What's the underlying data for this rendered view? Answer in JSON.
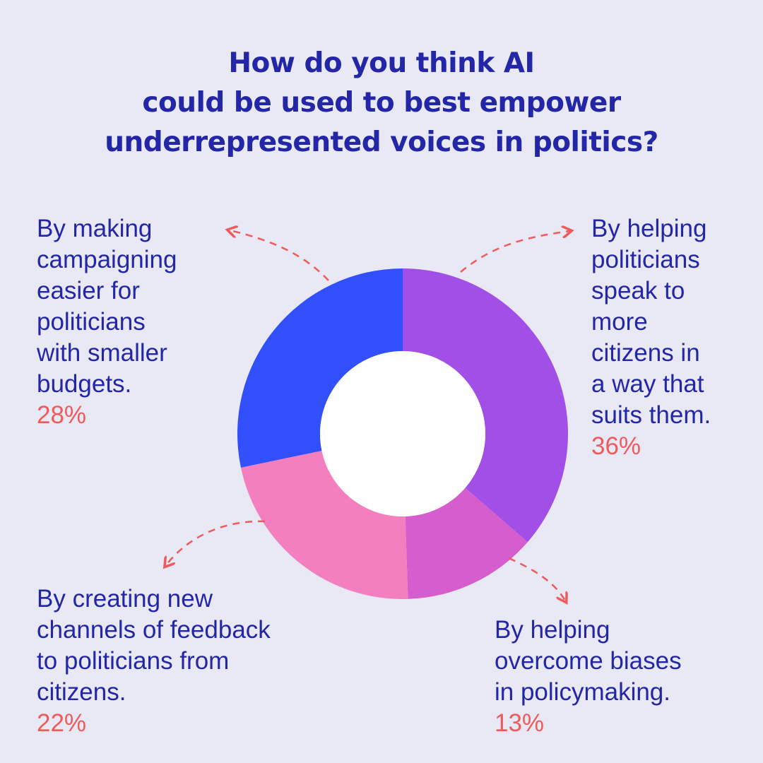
{
  "colors": {
    "background": "#e8e9f5",
    "title": "#2326a6",
    "label": "#2326a6",
    "percent": "#ef5a5a",
    "arrow": "#ef5a5a"
  },
  "chart_data": {
    "type": "pie",
    "variant": "donut",
    "title_lines": [
      "How do you think AI",
      "could be used to best empower",
      "underrepresented voices in politics?"
    ],
    "slices": [
      {
        "label_lines": [
          "By helping",
          "politicians",
          "speak to",
          "more",
          "citizens in",
          "a way that",
          "suits them."
        ],
        "percent_label": "36%",
        "value": 36,
        "color": "#a14fe6"
      },
      {
        "label_lines": [
          "By helping",
          "overcome biases",
          "in policymaking."
        ],
        "percent_label": "13%",
        "value": 13,
        "color": "#d65dce"
      },
      {
        "label_lines": [
          "By creating new",
          "channels of feedback",
          "to politicians from",
          "citizens."
        ],
        "percent_label": "22%",
        "value": 22,
        "color": "#f47fbe"
      },
      {
        "label_lines": [
          "By making",
          "campaigning",
          "easier for",
          "politicians",
          "with smaller",
          "budgets."
        ],
        "percent_label": "28%",
        "value": 28,
        "color": "#3150fc"
      }
    ],
    "legend": "none"
  }
}
